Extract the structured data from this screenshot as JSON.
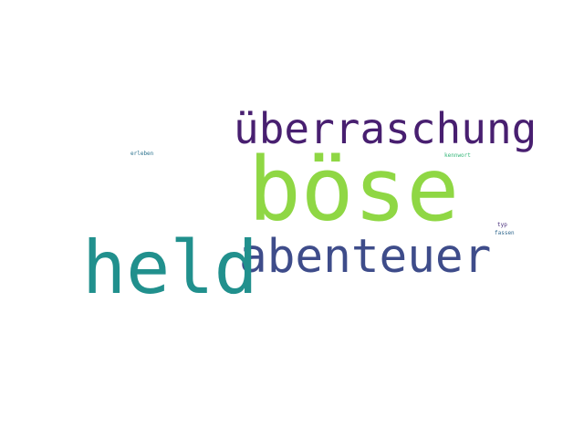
{
  "words": [
    {
      "text": "böse",
      "color": "#8fd744"
    },
    {
      "text": "überraschung",
      "color": "#481f70"
    },
    {
      "text": "abenteuer",
      "color": "#3e4c8a"
    },
    {
      "text": "held",
      "color": "#21908d"
    },
    {
      "text": "erleben",
      "color": "#2c728e"
    },
    {
      "text": "kennwort",
      "color": "#35b779"
    },
    {
      "text": "typ",
      "color": "#472d7b"
    },
    {
      "text": "fassen",
      "color": "#31688e"
    }
  ]
}
